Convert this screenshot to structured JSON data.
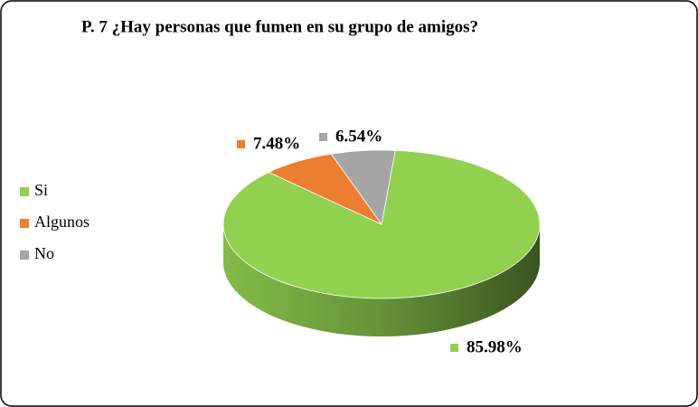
{
  "chart_data": {
    "type": "pie",
    "title": "P. 7 ¿Hay personas que fumen en su grupo de amigos?",
    "categories": [
      "Si",
      "Algunos",
      "No"
    ],
    "values": [
      85.98,
      7.48,
      6.54
    ],
    "value_labels": [
      "85.98%",
      "7.48%",
      "6.54%"
    ],
    "colors": [
      "#92d050",
      "#ed7d31",
      "#a5a5a5"
    ],
    "legend": "left"
  }
}
